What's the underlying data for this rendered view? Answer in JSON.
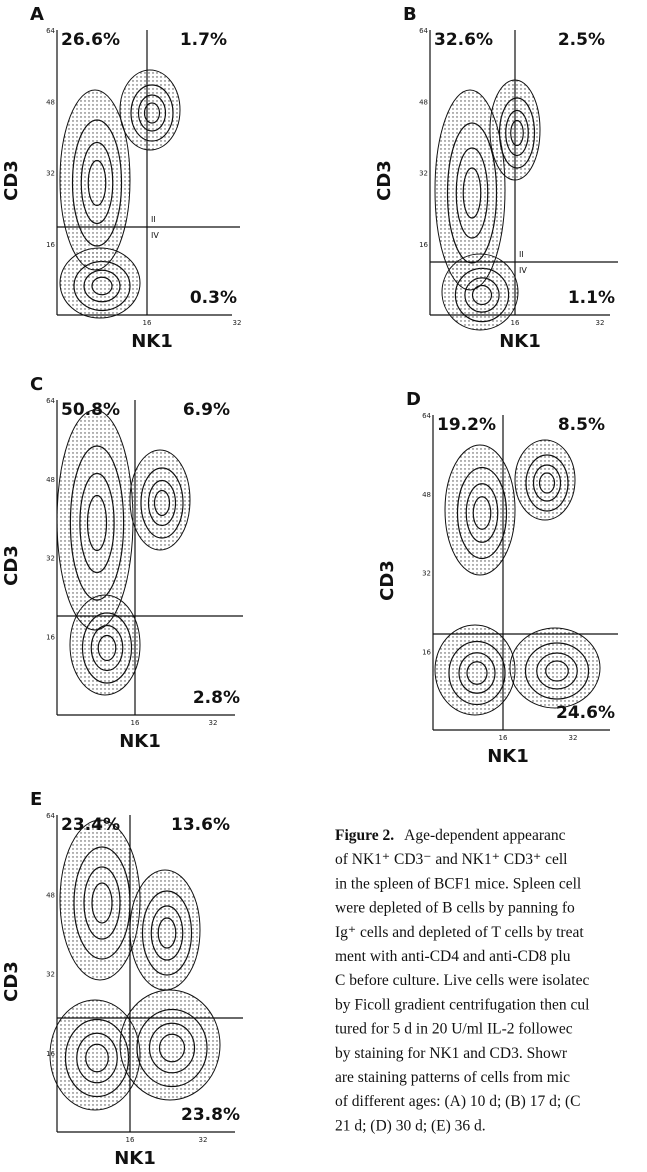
{
  "panels": [
    {
      "label": "A",
      "y_label": "CD3",
      "x_label": "NK1",
      "y_ticks": [
        64,
        48,
        32,
        16
      ],
      "x_ticks": [
        16,
        32
      ],
      "upper_left": "26.6%",
      "upper_right": "1.7%",
      "lower_right": "0.3%",
      "quadrant_marks": [
        "II",
        "IV"
      ]
    },
    {
      "label": "B",
      "y_label": "CD3",
      "x_label": "NK1",
      "y_ticks": [
        64,
        48,
        32,
        16
      ],
      "x_ticks": [
        16,
        32
      ],
      "upper_left": "32.6%",
      "upper_right": "2.5%",
      "lower_right": "1.1%",
      "quadrant_marks": [
        "II",
        "IV"
      ]
    },
    {
      "label": "C",
      "y_label": "CD3",
      "x_label": "NK1",
      "y_ticks": [
        64,
        48,
        32,
        16
      ],
      "x_ticks": [
        16,
        32
      ],
      "upper_left": "50.8%",
      "upper_right": "6.9%",
      "lower_right": "2.8%"
    },
    {
      "label": "D",
      "y_label": "CD3",
      "x_label": "NK1",
      "y_ticks": [
        64,
        48,
        32,
        16
      ],
      "x_ticks": [
        16,
        32
      ],
      "upper_left": "19.2%",
      "upper_right": "8.5%",
      "lower_right": "24.6%"
    },
    {
      "label": "E",
      "y_label": "CD3",
      "x_label": "NK1",
      "y_ticks": [
        64,
        48,
        32,
        16
      ],
      "x_ticks": [
        16,
        32
      ],
      "upper_left": "23.4%",
      "upper_right": "13.6%",
      "lower_right": "23.8%"
    }
  ],
  "caption": {
    "title": "Figure 2.",
    "first_line": "Age-dependent appearanc",
    "lines": [
      "of NK1⁺ CD3⁻ and NK1⁺ CD3⁺ cell",
      "in the spleen of BCF1 mice. Spleen cell",
      "were depleted of B cells by panning fo",
      "Ig⁺ cells and depleted of T cells by treat",
      "ment with anti-CD4 and anti-CD8 plu",
      "C before culture. Live cells were isolatec",
      "by Ficoll gradient centrifugation then cul",
      "tured for 5 d in 20 U/ml IL-2 followec",
      "by staining for NK1 and CD3. Showr",
      "are staining patterns of cells from mic",
      "of different ages: (A) 10 d; (B) 17 d; (C",
      "21 d; (D) 30 d; (E) 36 d."
    ]
  }
}
